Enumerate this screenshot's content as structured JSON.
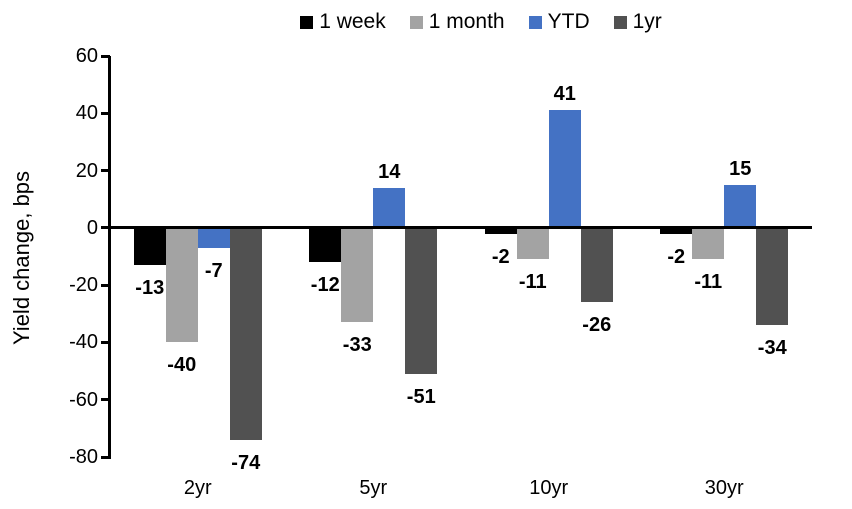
{
  "chart_data": {
    "type": "bar",
    "title": "",
    "xlabel": "",
    "ylabel": "Yield change, bps",
    "categories": [
      "2yr",
      "5yr",
      "10yr",
      "30yr"
    ],
    "series": [
      {
        "name": "1 week",
        "color": "#000000",
        "values": [
          -13,
          -12,
          -2,
          -2
        ]
      },
      {
        "name": "1 month",
        "color": "#A3A3A3",
        "values": [
          -40,
          -33,
          -11,
          -11
        ]
      },
      {
        "name": "YTD",
        "color": "#4472C4",
        "values": [
          -7,
          14,
          41,
          15
        ]
      },
      {
        "name": "1yr",
        "color": "#515151",
        "values": [
          -74,
          -51,
          -26,
          -34
        ]
      }
    ],
    "ylim": [
      -80,
      60
    ],
    "yticks": [
      60,
      40,
      20,
      0,
      -20,
      -40,
      -60,
      -80
    ],
    "grid": false,
    "data_labels": true,
    "legend_position": "top",
    "axis_color": "#000000"
  }
}
